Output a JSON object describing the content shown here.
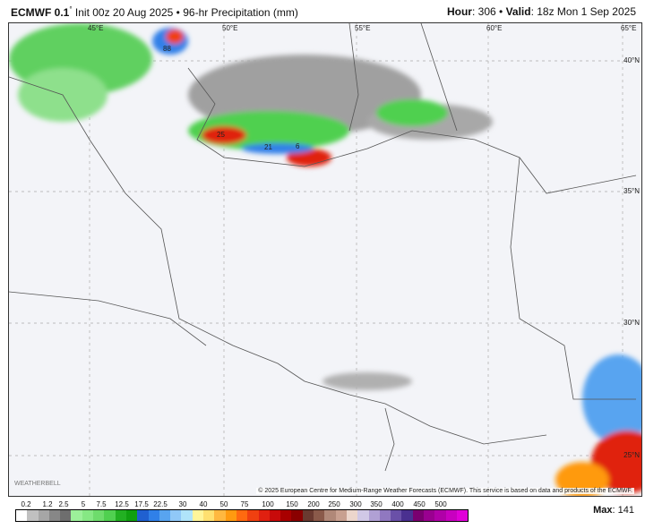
{
  "header": {
    "model": "ECMWF 0.1",
    "degree": "°",
    "init": "Init 00z 20 Aug 2025",
    "sep": "•",
    "product": "96-hr Precipitation (mm)",
    "hour_label": "Hour",
    "hour": "306",
    "valid_label": "Valid",
    "valid": "18z Mon 1 Sep 2025"
  },
  "map": {
    "lon_labels": [
      "45°E",
      "50°E",
      "55°E",
      "60°E",
      "65°E"
    ],
    "lat_labels": [
      "40°N",
      "35°N",
      "30°N",
      "25°N"
    ],
    "point_labels": [
      "88",
      "25",
      "21",
      "6"
    ],
    "copyright": "© 2025 European Centre for Medium-Range Weather Forecasts (ECMWF). This service is based on data and products of the ECMWF.",
    "logo": "WEATHERBELL"
  },
  "legend": {
    "ticks": [
      "0.2",
      "1.2",
      "2.5",
      "5",
      "7.5",
      "12.5",
      "17.5",
      "22.5",
      "30",
      "40",
      "50",
      "75",
      "100",
      "150",
      "200",
      "250",
      "300",
      "350",
      "400",
      "450",
      "500"
    ],
    "colors": [
      "#ffffff",
      "#c0c0c0",
      "#a6a6a6",
      "#878787",
      "#6e6e6e",
      "#9cf09a",
      "#86e884",
      "#6edc6c",
      "#50d050",
      "#22b022",
      "#10a010",
      "#2060d0",
      "#3080e8",
      "#58a4f0",
      "#90c8f8",
      "#b0e4fa",
      "#fff59a",
      "#ffe070",
      "#ffb840",
      "#ff9a10",
      "#ff6a10",
      "#f04010",
      "#e02010",
      "#c80a0a",
      "#a80000",
      "#8a0000",
      "#6a3a30",
      "#8a5a4a",
      "#b08878",
      "#c8a090",
      "#ecd6cc",
      "#d0c8e6",
      "#b0a0d4",
      "#9078c0",
      "#6a50a8",
      "#4a3090",
      "#7a0070",
      "#9a0090",
      "#b000a8",
      "#c800c0",
      "#e000d8"
    ],
    "max_label": "Max",
    "max_value": "141"
  }
}
